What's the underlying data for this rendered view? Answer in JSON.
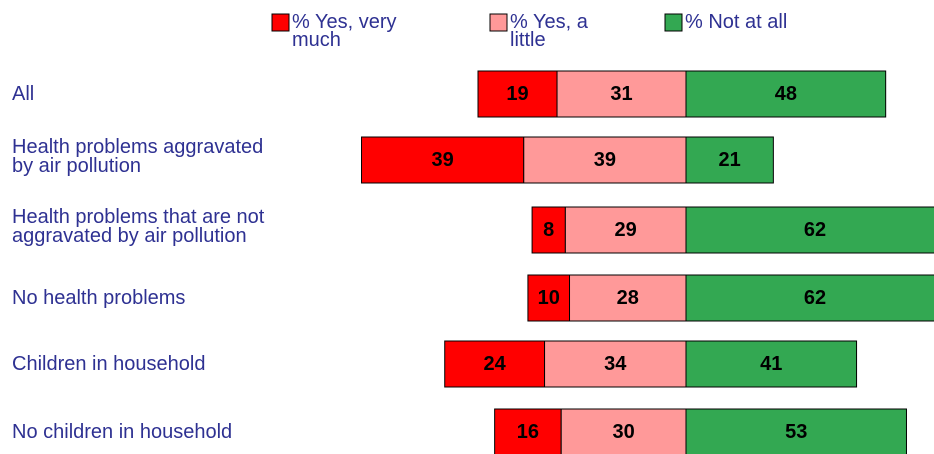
{
  "chart_data": {
    "type": "diverging_stacked_bar",
    "categories": [
      "All",
      "Health problems aggravated\nby air pollution",
      "Health problems that are not\naggravated by air pollution",
      "No health problems",
      "Children in household",
      "No children in household"
    ],
    "series": [
      {
        "name": "% Yes, very much",
        "color": "#ff0000",
        "values": [
          19,
          39,
          8,
          10,
          24,
          16
        ]
      },
      {
        "name": "% Yes, a little",
        "color": "#ff9999",
        "values": [
          31,
          39,
          29,
          28,
          34,
          30
        ]
      },
      {
        "name": "% Not at all",
        "color": "#33a852",
        "values": [
          48,
          21,
          62,
          62,
          41,
          53
        ]
      }
    ]
  }
}
